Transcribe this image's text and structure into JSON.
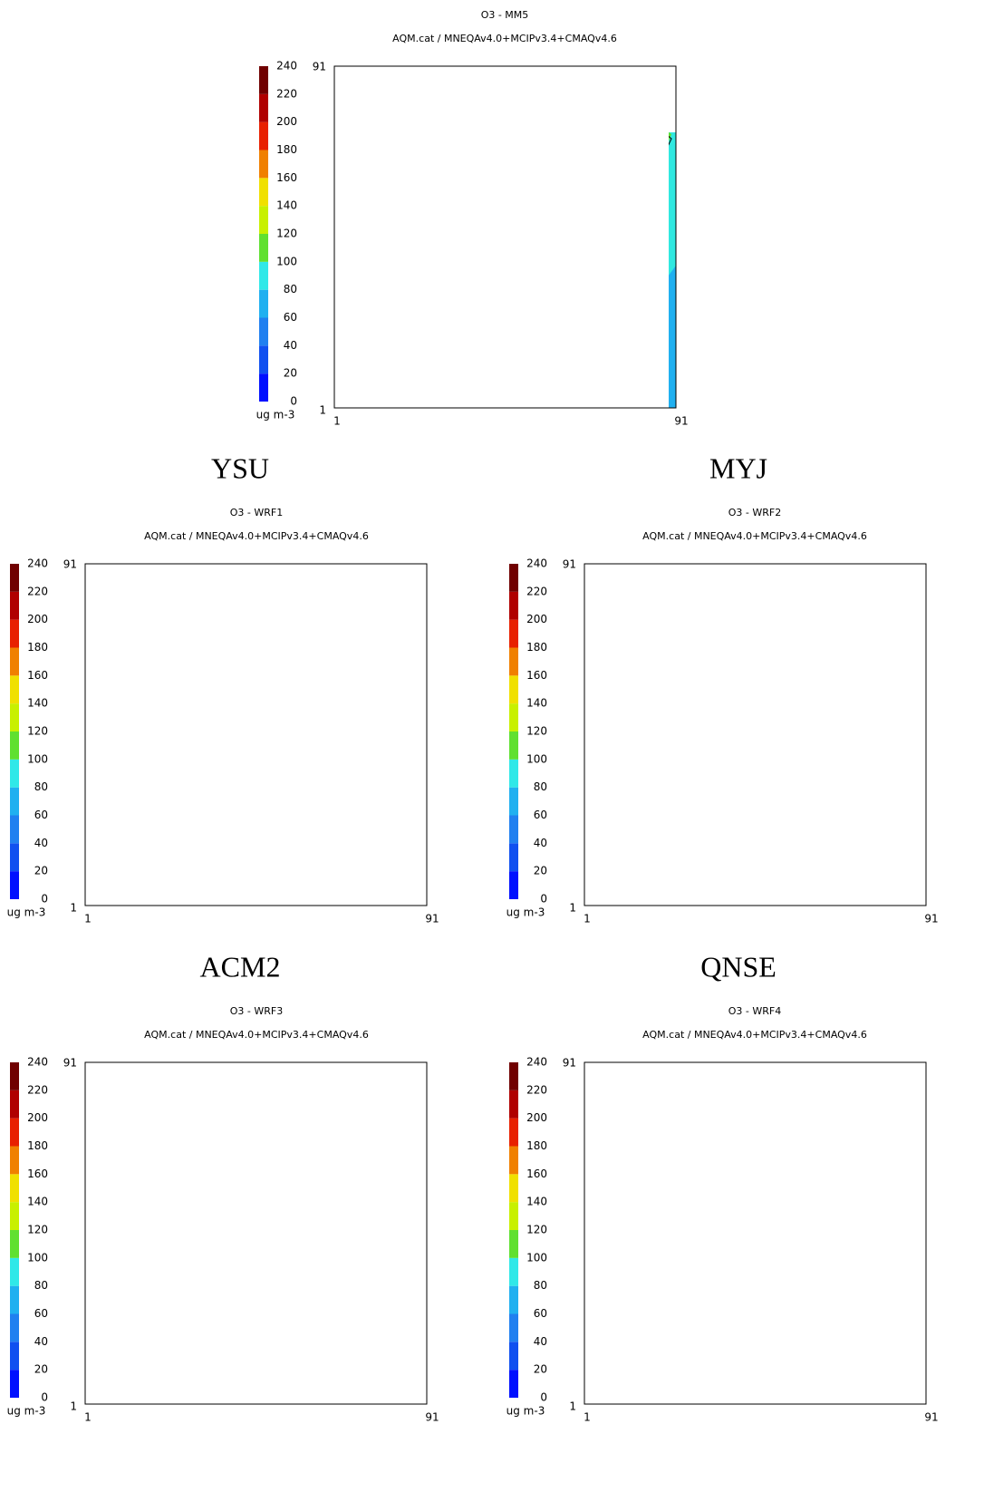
{
  "subtitle": "AQM.cat / MNEQAv4.0+MCIPv3.4+CMAQv4.6",
  "colorbar": {
    "ticks": [
      0,
      20,
      40,
      60,
      80,
      100,
      120,
      140,
      160,
      180,
      200,
      220,
      240
    ],
    "colors": [
      "#0010ff",
      "#1050f0",
      "#2080f0",
      "#20b0f0",
      "#30e8e8",
      "#60e030",
      "#c8f000",
      "#f0e000",
      "#f08000",
      "#e82000",
      "#b00000",
      "#700000"
    ],
    "unit": "ug m-3"
  },
  "axis": {
    "xlim": [
      1,
      91
    ],
    "ylim": [
      1,
      91
    ]
  },
  "panels": [
    {
      "title": "O3 - MM5"
    },
    {
      "label": "YSU",
      "title": "O3 - WRF1"
    },
    {
      "label": "MYJ",
      "title": "O3 - WRF2"
    },
    {
      "label": "ACM2",
      "title": "O3 - WRF3"
    },
    {
      "label": "QNSE",
      "title": "O3 - WRF4"
    }
  ]
}
